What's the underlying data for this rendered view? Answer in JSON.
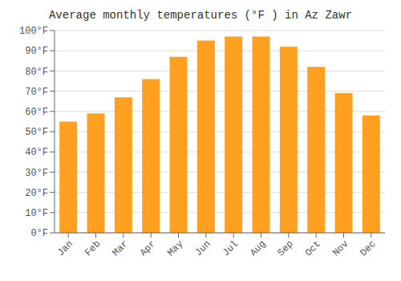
{
  "chart_data": {
    "type": "bar",
    "title": "Average monthly temperatures (°F ) in Az Zawr",
    "categories": [
      "Jan",
      "Feb",
      "Mar",
      "Apr",
      "May",
      "Jun",
      "Jul",
      "Aug",
      "Sep",
      "Oct",
      "Nov",
      "Dec"
    ],
    "values": [
      55,
      59,
      67,
      76,
      87,
      95,
      97,
      97,
      92,
      82,
      69,
      58
    ],
    "color": "#FFA020",
    "ylim": [
      0,
      100
    ],
    "yticks": [
      {
        "value": 0,
        "label": "0°F"
      },
      {
        "value": 10,
        "label": "10°F"
      },
      {
        "value": 20,
        "label": "20°F"
      },
      {
        "value": 30,
        "label": "30°F"
      },
      {
        "value": 40,
        "label": "40°F"
      },
      {
        "value": 50,
        "label": "50°F"
      },
      {
        "value": 60,
        "label": "60°F"
      },
      {
        "value": 70,
        "label": "70°F"
      },
      {
        "value": 80,
        "label": "80°F"
      },
      {
        "value": 90,
        "label": "90°F"
      },
      {
        "value": 100,
        "label": "100°F"
      }
    ],
    "grid": true
  }
}
